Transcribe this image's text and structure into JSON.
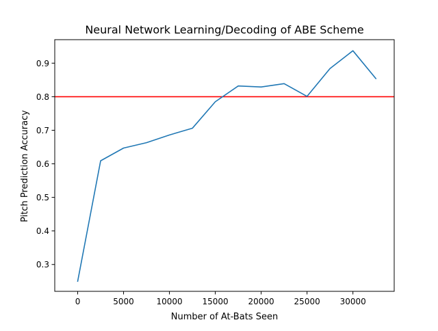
{
  "chart_data": {
    "type": "line",
    "title": "Neural Network Learning/Decoding of ABE Scheme",
    "xlabel": "Number of At-Bats Seen",
    "ylabel": "Pitch Prediction Accuracy",
    "xlim": [
      -2500,
      34500
    ],
    "ylim": [
      0.22,
      0.97
    ],
    "xticks": [
      0,
      5000,
      10000,
      15000,
      20000,
      25000,
      30000
    ],
    "xtick_labels": [
      "0",
      "5000",
      "10000",
      "15000",
      "20000",
      "25000",
      "30000"
    ],
    "yticks": [
      0.3,
      0.4,
      0.5,
      0.6,
      0.7,
      0.8,
      0.9
    ],
    "ytick_labels": [
      "0.3",
      "0.4",
      "0.5",
      "0.6",
      "0.7",
      "0.8",
      "0.9"
    ],
    "grid": false,
    "series": [
      {
        "color": "#1f77b4",
        "x": [
          0,
          2500,
          5000,
          7500,
          10000,
          12500,
          15000,
          17500,
          20000,
          22500,
          25000,
          27500,
          30000,
          32500
        ],
        "y": [
          0.25,
          0.609,
          0.647,
          0.663,
          0.686,
          0.706,
          0.785,
          0.832,
          0.829,
          0.839,
          0.801,
          0.884,
          0.937,
          0.854
        ]
      }
    ],
    "hlines": [
      {
        "y": 0.8,
        "color": "#ff0000"
      }
    ]
  }
}
